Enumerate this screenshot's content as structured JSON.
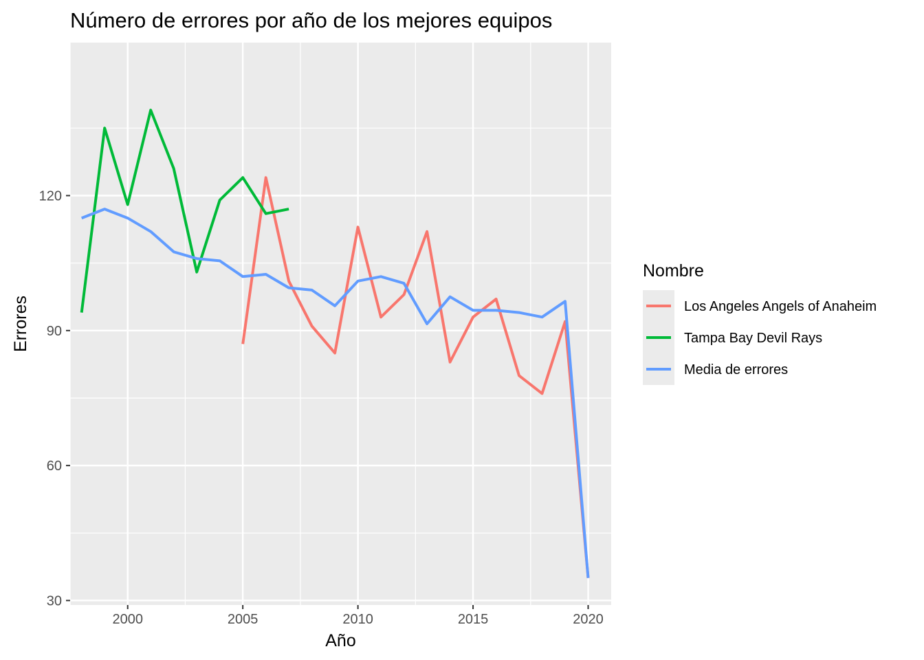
{
  "chart_data": {
    "type": "line",
    "title": "Número de errores por año de los mejores equipos",
    "xlabel": "Año",
    "ylabel": "Errores",
    "xlim": [
      1997.5,
      2021.0
    ],
    "ylim": [
      29,
      154
    ],
    "x_ticks": [
      2000,
      2005,
      2010,
      2015,
      2020
    ],
    "x_tick_labels": [
      "2000",
      "2005",
      "2010",
      "2015",
      "2020"
    ],
    "y_ticks": [
      30,
      60,
      90,
      120
    ],
    "y_tick_labels": [
      "30",
      "60",
      "90",
      "120"
    ],
    "grid": true,
    "legend": {
      "title": "Nombre",
      "placement": "right"
    },
    "series": [
      {
        "name": "Los Angeles Angels of Anaheim",
        "color": "#F8766D",
        "x": [
          2005,
          2006,
          2007,
          2008,
          2009,
          2010,
          2011,
          2012,
          2013,
          2014,
          2015,
          2016,
          2017,
          2018,
          2019,
          2020
        ],
        "values": [
          87,
          124,
          101,
          91,
          85,
          113,
          93,
          98,
          112,
          83,
          93,
          97,
          80,
          76,
          92,
          35
        ]
      },
      {
        "name": "Tampa Bay Devil Rays",
        "color": "#00BA38",
        "x": [
          1998,
          1999,
          2000,
          2001,
          2002,
          2003,
          2004,
          2005,
          2006,
          2007
        ],
        "values": [
          94,
          135,
          118,
          139,
          126,
          103,
          119,
          124,
          116,
          117
        ]
      },
      {
        "name": "Media de errores",
        "color": "#619CFF",
        "x": [
          1998,
          1999,
          2000,
          2001,
          2002,
          2003,
          2004,
          2005,
          2006,
          2007,
          2008,
          2009,
          2010,
          2011,
          2012,
          2013,
          2014,
          2015,
          2016,
          2017,
          2018,
          2019,
          2020
        ],
        "values": [
          115,
          117,
          115,
          112,
          107.5,
          106,
          105.5,
          102,
          102.5,
          99.5,
          99,
          95.5,
          101,
          102,
          100.5,
          91.5,
          97.5,
          94.5,
          94.5,
          94,
          93,
          96.5,
          35
        ]
      }
    ]
  }
}
